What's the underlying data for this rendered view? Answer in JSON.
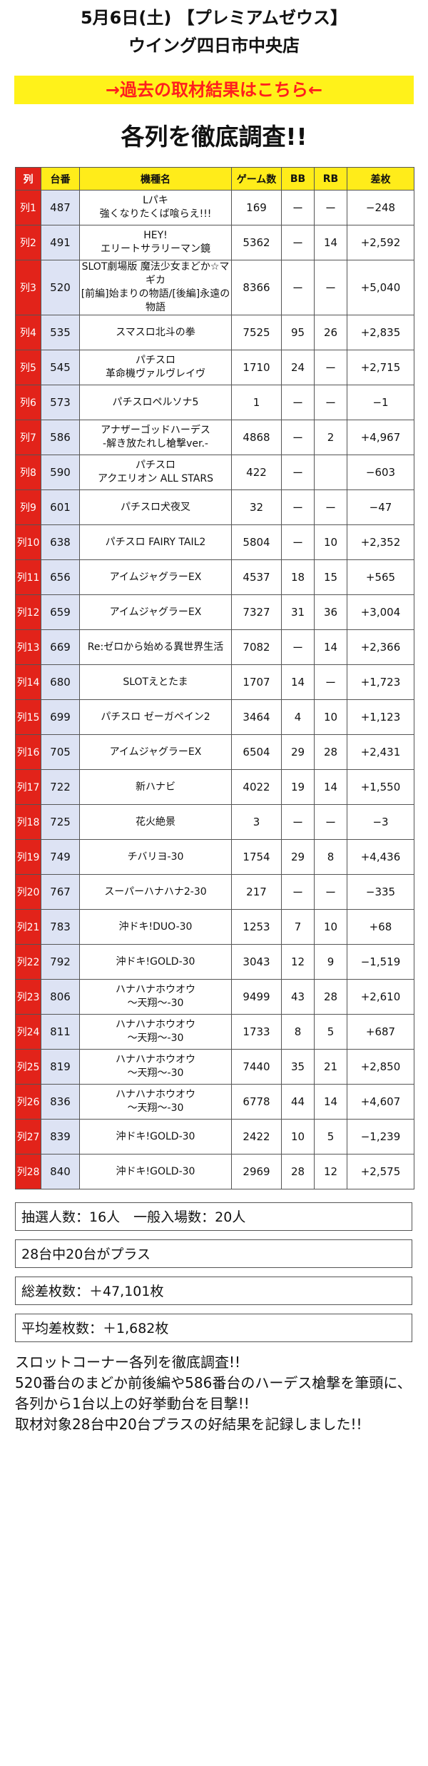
{
  "page": {
    "title": "5月6日(土) 【プレミアムゼウス】",
    "subtitle": "ウイング四日市中央店",
    "banner_link": "→過去の取材結果はこちら←",
    "heading": "各列を徹底調査!!"
  },
  "table": {
    "headers": [
      "列",
      "台番",
      "機種名",
      "ゲーム数",
      "BB",
      "RB",
      "差枚"
    ],
    "rows": [
      {
        "row": "列1",
        "num": "487",
        "name": "Lパキ\n強くなりたくば喰らえ!!!",
        "games": "169",
        "bb": "ー",
        "rb": "ー",
        "diff": "−248"
      },
      {
        "row": "列2",
        "num": "491",
        "name": "HEY!\nエリートサラリーマン鏡",
        "games": "5362",
        "bb": "ー",
        "rb": "14",
        "diff": "+2,592"
      },
      {
        "row": "列3",
        "num": "520",
        "name": "SLOT劇場版 魔法少女まどか☆マギカ\n[前編]始まりの物語/[後編]永遠の物語",
        "games": "8366",
        "bb": "ー",
        "rb": "ー",
        "diff": "+5,040"
      },
      {
        "row": "列4",
        "num": "535",
        "name": "スマスロ北斗の拳",
        "games": "7525",
        "bb": "95",
        "rb": "26",
        "diff": "+2,835"
      },
      {
        "row": "列5",
        "num": "545",
        "name": "パチスロ\n革命機ヴァルヴレイヴ",
        "games": "1710",
        "bb": "24",
        "rb": "ー",
        "diff": "+2,715"
      },
      {
        "row": "列6",
        "num": "573",
        "name": "パチスロペルソナ5",
        "games": "1",
        "bb": "ー",
        "rb": "ー",
        "diff": "−1"
      },
      {
        "row": "列7",
        "num": "586",
        "name": "アナザーゴッドハーデス\n-解き放たれし槍撃ver.-",
        "games": "4868",
        "bb": "ー",
        "rb": "2",
        "diff": "+4,967"
      },
      {
        "row": "列8",
        "num": "590",
        "name": "パチスロ\nアクエリオン ALL STARS",
        "games": "422",
        "bb": "ー",
        "rb": "",
        "diff": "−603"
      },
      {
        "row": "列9",
        "num": "601",
        "name": "パチスロ犬夜叉",
        "games": "32",
        "bb": "ー",
        "rb": "ー",
        "diff": "−47"
      },
      {
        "row": "列10",
        "num": "638",
        "name": "パチスロ FAIRY TAIL2",
        "games": "5804",
        "bb": "ー",
        "rb": "10",
        "diff": "+2,352"
      },
      {
        "row": "列11",
        "num": "656",
        "name": "アイムジャグラーEX",
        "games": "4537",
        "bb": "18",
        "rb": "15",
        "diff": "+565"
      },
      {
        "row": "列12",
        "num": "659",
        "name": "アイムジャグラーEX",
        "games": "7327",
        "bb": "31",
        "rb": "36",
        "diff": "+3,004"
      },
      {
        "row": "列13",
        "num": "669",
        "name": "Re:ゼロから始める異世界生活",
        "games": "7082",
        "bb": "ー",
        "rb": "14",
        "diff": "+2,366"
      },
      {
        "row": "列14",
        "num": "680",
        "name": "SLOTえとたま",
        "games": "1707",
        "bb": "14",
        "rb": "ー",
        "diff": "+1,723"
      },
      {
        "row": "列15",
        "num": "699",
        "name": "パチスロ ゼーガペイン2",
        "games": "3464",
        "bb": "4",
        "rb": "10",
        "diff": "+1,123"
      },
      {
        "row": "列16",
        "num": "705",
        "name": "アイムジャグラーEX",
        "games": "6504",
        "bb": "29",
        "rb": "28",
        "diff": "+2,431"
      },
      {
        "row": "列17",
        "num": "722",
        "name": "新ハナビ",
        "games": "4022",
        "bb": "19",
        "rb": "14",
        "diff": "+1,550"
      },
      {
        "row": "列18",
        "num": "725",
        "name": "花火絶景",
        "games": "3",
        "bb": "ー",
        "rb": "ー",
        "diff": "−3"
      },
      {
        "row": "列19",
        "num": "749",
        "name": "チバリヨ-30",
        "games": "1754",
        "bb": "29",
        "rb": "8",
        "diff": "+4,436"
      },
      {
        "row": "列20",
        "num": "767",
        "name": "スーパーハナハナ2-30",
        "games": "217",
        "bb": "ー",
        "rb": "ー",
        "diff": "−335"
      },
      {
        "row": "列21",
        "num": "783",
        "name": "沖ドキ!DUO-30",
        "games": "1253",
        "bb": "7",
        "rb": "10",
        "diff": "+68"
      },
      {
        "row": "列22",
        "num": "792",
        "name": "沖ドキ!GOLD-30",
        "games": "3043",
        "bb": "12",
        "rb": "9",
        "diff": "−1,519"
      },
      {
        "row": "列23",
        "num": "806",
        "name": "ハナハナホウオウ\n〜天翔〜-30",
        "games": "9499",
        "bb": "43",
        "rb": "28",
        "diff": "+2,610"
      },
      {
        "row": "列24",
        "num": "811",
        "name": "ハナハナホウオウ\n〜天翔〜-30",
        "games": "1733",
        "bb": "8",
        "rb": "5",
        "diff": "+687"
      },
      {
        "row": "列25",
        "num": "819",
        "name": "ハナハナホウオウ\n〜天翔〜-30",
        "games": "7440",
        "bb": "35",
        "rb": "21",
        "diff": "+2,850"
      },
      {
        "row": "列26",
        "num": "836",
        "name": "ハナハナホウオウ\n〜天翔〜-30",
        "games": "6778",
        "bb": "44",
        "rb": "14",
        "diff": "+4,607"
      },
      {
        "row": "列27",
        "num": "839",
        "name": "沖ドキ!GOLD-30",
        "games": "2422",
        "bb": "10",
        "rb": "5",
        "diff": "−1,239"
      },
      {
        "row": "列28",
        "num": "840",
        "name": "沖ドキ!GOLD-30",
        "games": "2969",
        "bb": "28",
        "rb": "12",
        "diff": "+2,575"
      }
    ]
  },
  "stats": {
    "entrants": "抽選人数：16人　一般入場数：20人",
    "plus_count": "28台中20台がプラス",
    "total_diff": "総差枚数：＋47,101枚",
    "avg_diff": "平均差枚数：＋1,682枚"
  },
  "summary": "スロットコーナー各列を徹底調査!!\n520番台のまどか前後編や586番台のハーデス槍撃を筆頭に、各列から1台以上の好挙動台を目撃!!\n取材対象28台中20台プラスの好結果を記録しました!!"
}
